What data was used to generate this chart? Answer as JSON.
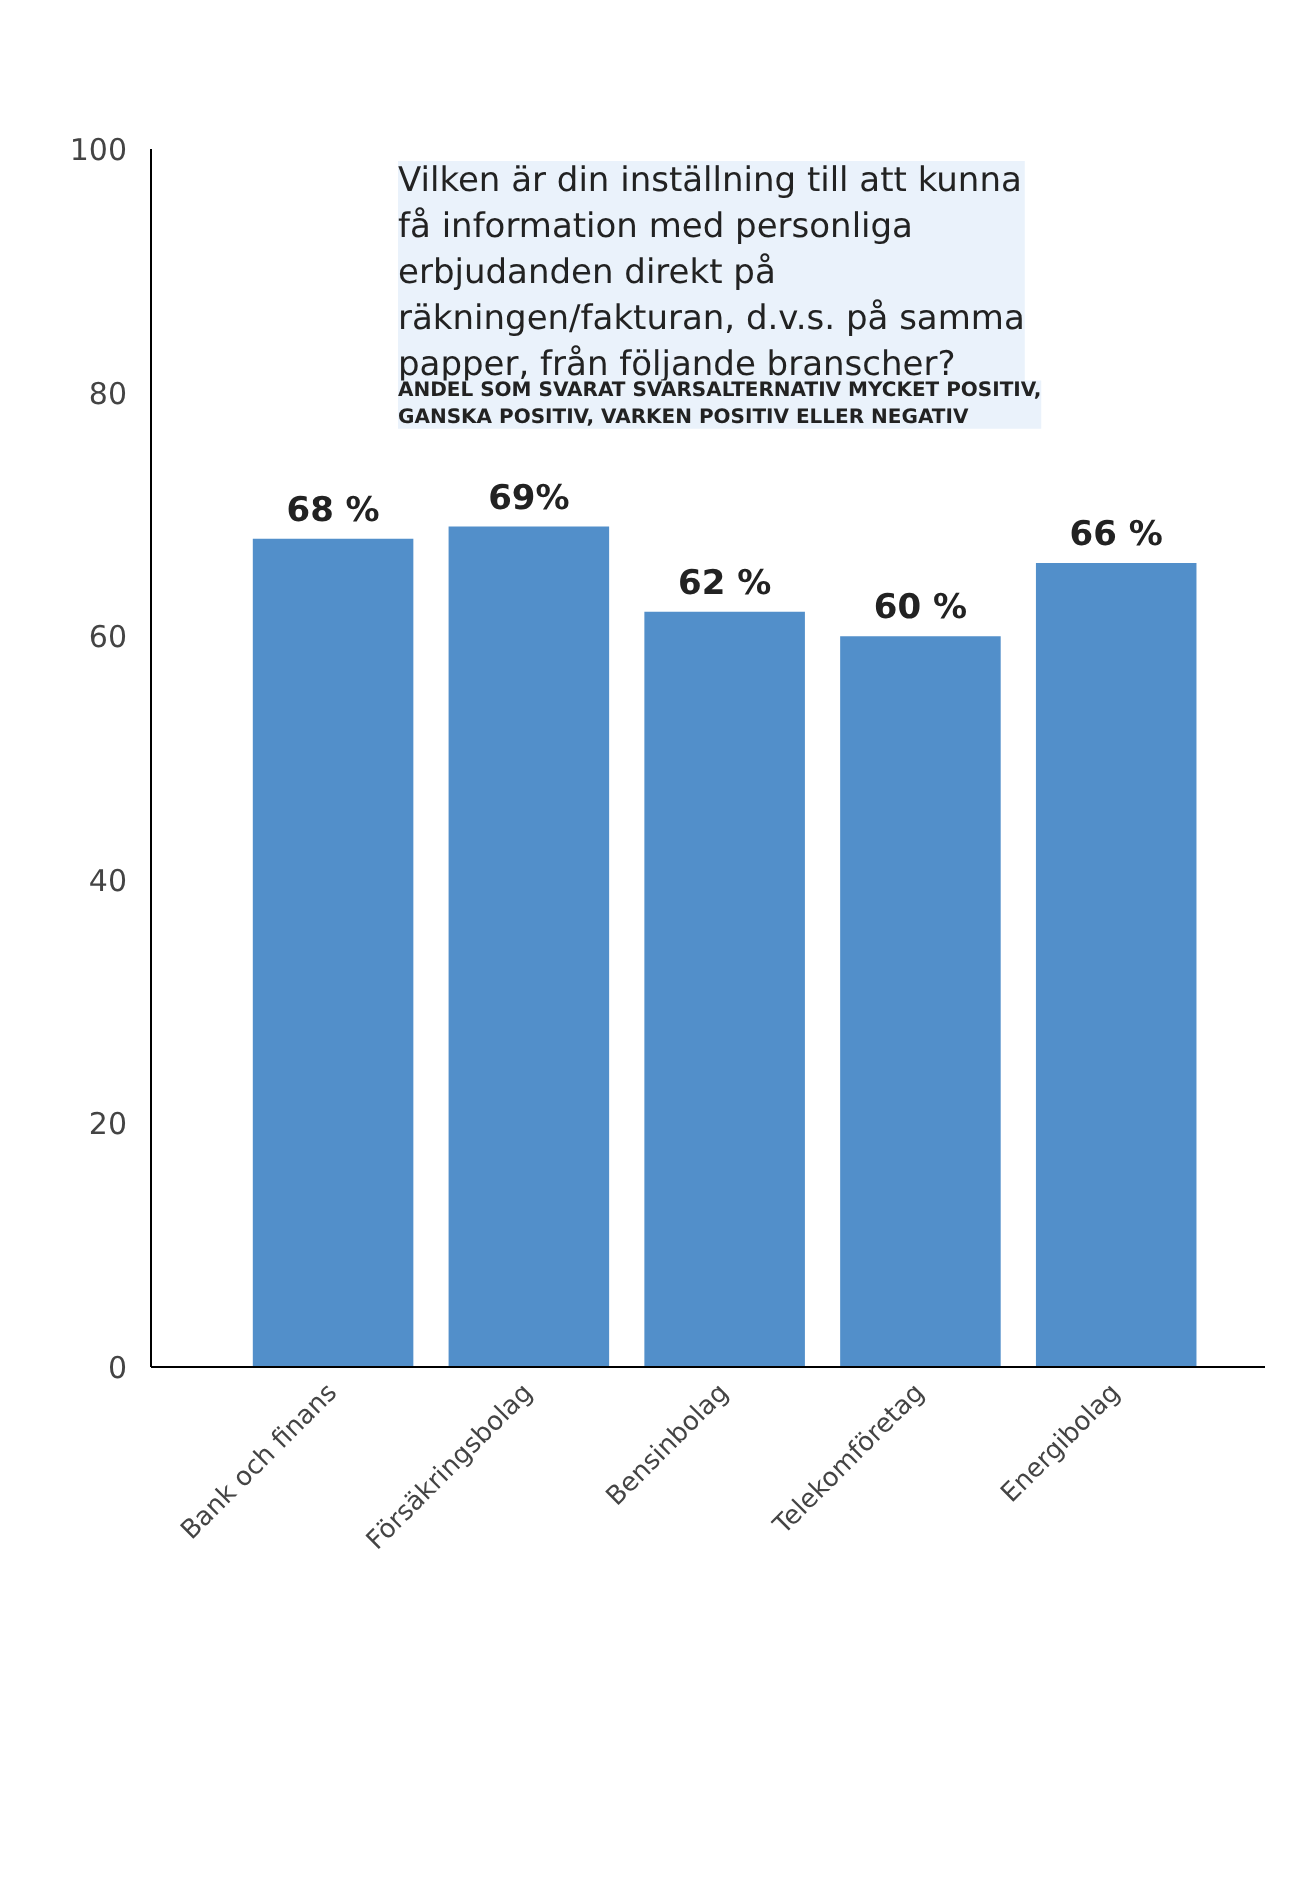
{
  "chart_data": {
    "type": "bar",
    "title": "Vilken är din inställning till att kunna få information med personliga erbjudanden direkt på räkningen/fakturan, d.v.s. på samma papper, från följande branscher?",
    "subtitle": "ANDEL SOM SVARAT SVARSALTERNATIV MYCKET POSITIV, GANSKA POSITIV, VARKEN POSITIV ELLER NEGATIV",
    "categories": [
      "Bank och finans",
      "Försäkringsbolag",
      "Bensinbolag",
      "Telekomföretag",
      "Energibolag"
    ],
    "values": [
      68,
      69,
      62,
      60,
      66
    ],
    "value_labels": [
      "68 %",
      "69%",
      "62 %",
      "60 %",
      "66 %"
    ],
    "color": "#528fca",
    "ylim": [
      0,
      100
    ],
    "yticks": [
      0,
      20,
      40,
      60,
      80,
      100
    ],
    "grid": false
  }
}
